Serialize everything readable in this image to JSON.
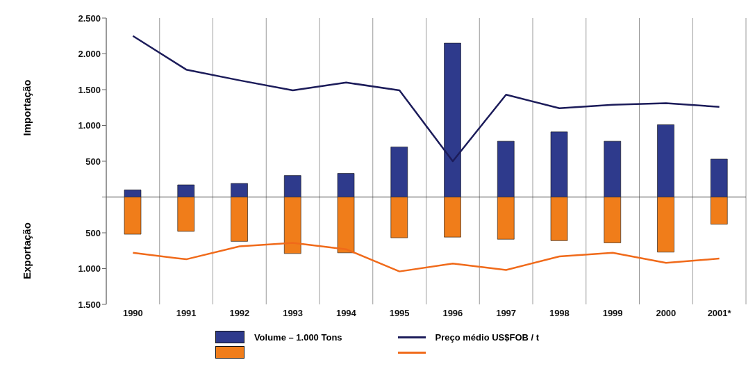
{
  "chart_data": {
    "type": "bar",
    "ylabel": "Importação",
    "annotations": [
      "Exportação"
    ],
    "categories": [
      "1990",
      "1991",
      "1992",
      "1993",
      "1994",
      "1995",
      "1996",
      "1997",
      "1998",
      "1999",
      "2000",
      "2001*"
    ],
    "series": [
      {
        "name": "Volume – 1.000 Tons",
        "color": "#2e3a8c",
        "values": [
          100,
          170,
          190,
          300,
          330,
          700,
          2150,
          780,
          910,
          780,
          1010,
          530
        ]
      },
      {
        "color": "#f07d1a",
        "values": [
          -520,
          -480,
          -620,
          -790,
          -780,
          -570,
          -560,
          -590,
          -610,
          -640,
          -770,
          -380
        ]
      },
      {
        "name": "Preço médio US$FOB / t",
        "type": "line",
        "color": "#1c1c5a",
        "values": [
          2250,
          1780,
          1630,
          1490,
          1600,
          1490,
          500,
          1430,
          1240,
          1290,
          1310,
          1260
        ]
      },
      {
        "type": "line",
        "color": "#f06a1a",
        "values": [
          -780,
          -870,
          -690,
          -640,
          -730,
          -1040,
          -930,
          -1020,
          -830,
          -780,
          -920,
          -860
        ]
      }
    ],
    "stacked": true,
    "ylim": [
      -1500,
      2500
    ],
    "yticks": [
      {
        "value": -1500,
        "label": "1.500"
      },
      {
        "value": -1000,
        "label": "1.000"
      },
      {
        "value": -500,
        "label": "500"
      },
      {
        "value": 0,
        "label": null
      },
      {
        "value": 500,
        "label": "500"
      },
      {
        "value": 1000,
        "label": "1.000"
      },
      {
        "value": 1500,
        "label": "1.500"
      },
      {
        "value": 2000,
        "label": "2.000"
      },
      {
        "value": 2500,
        "label": "2.500"
      }
    ],
    "ref_lines": [
      {
        "axis": "y",
        "value": 0,
        "color": "#333333"
      }
    ],
    "grid": "x",
    "legend": "bottom",
    "marker": "none",
    "line_style": "solid"
  }
}
